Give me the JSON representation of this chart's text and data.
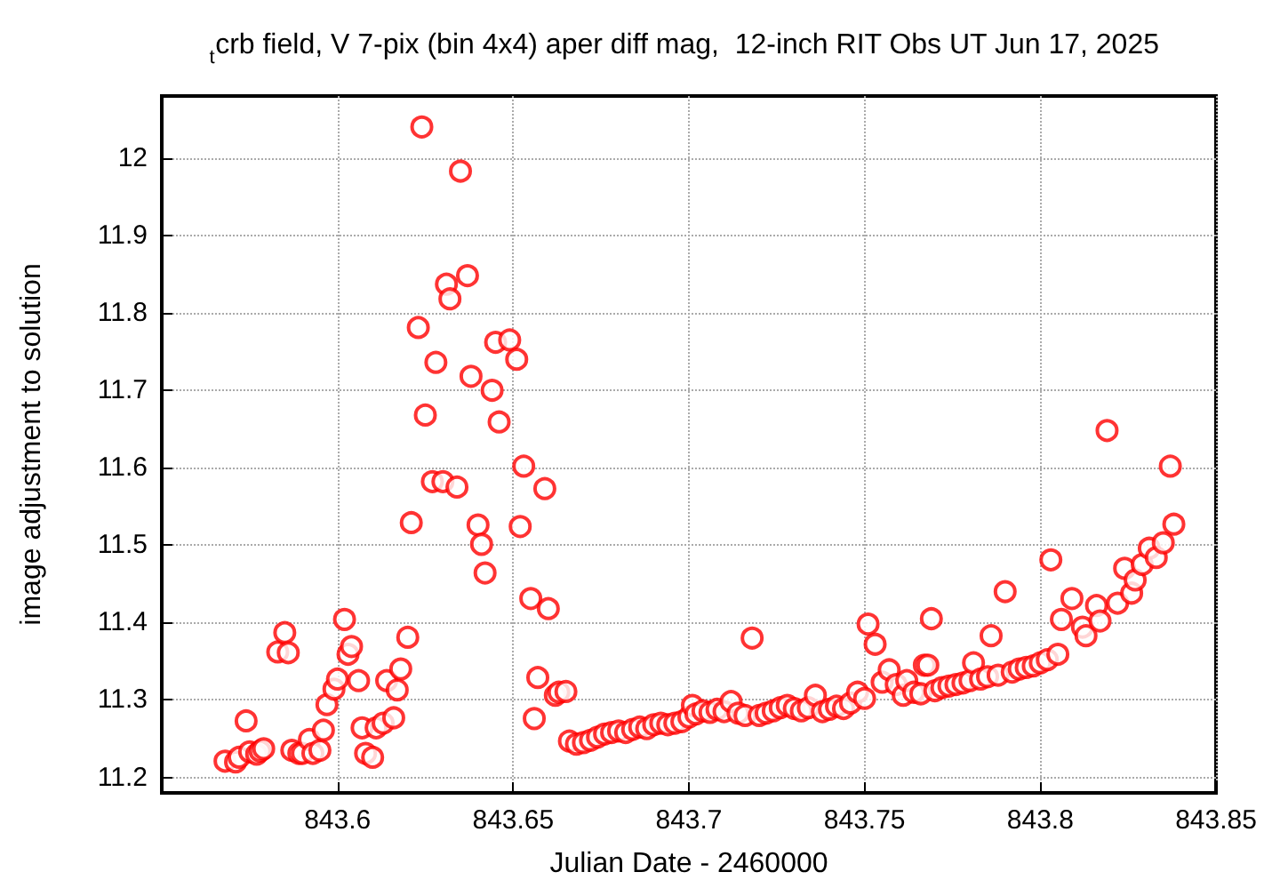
{
  "chart_data": {
    "type": "scatter",
    "title": "$_{t}$crb field, V 7-pix (bin 4x4) aper diff mag,  12-inch RIT Obs UT Jun 17, 2025",
    "xlabel": "Julian Date - 2460000",
    "ylabel": "image adjustment to solution",
    "marker": "circle",
    "grid": true,
    "xlim": [
      843.55,
      843.85
    ],
    "xticks": [
      843.6,
      843.65,
      843.7,
      843.75,
      843.8,
      843.85
    ],
    "ylim": [
      11.18,
      12.08
    ],
    "yticks": [
      11.2,
      11.3,
      11.4,
      11.5,
      11.6,
      11.7,
      11.8,
      11.9,
      12
    ],
    "series": [
      {
        "color": "#ff0000",
        "x": [
          843.568,
          843.571,
          843.572,
          843.574,
          843.575,
          843.577,
          843.578,
          843.579,
          843.583,
          843.585,
          843.586,
          843.587,
          843.589,
          843.59,
          843.592,
          843.593,
          843.595,
          843.596,
          843.597,
          843.599,
          843.6,
          843.602,
          843.603,
          843.604,
          843.606,
          843.607,
          843.608,
          843.61,
          843.611,
          843.613,
          843.614,
          843.616,
          843.617,
          843.618,
          843.62,
          843.621,
          843.623,
          843.624,
          843.625,
          843.627,
          843.628,
          843.63,
          843.631,
          843.632,
          843.634,
          843.635,
          843.637,
          843.638,
          843.64,
          843.641,
          843.642,
          843.644,
          843.645,
          843.646,
          843.649,
          843.651,
          843.652,
          843.653,
          843.655,
          843.656,
          843.657,
          843.659,
          843.66,
          843.662,
          843.663,
          843.665,
          843.666,
          843.668,
          843.67,
          843.672,
          843.674,
          843.676,
          843.678,
          843.68,
          843.682,
          843.684,
          843.686,
          843.688,
          843.69,
          843.692,
          843.694,
          843.696,
          843.698,
          843.7,
          843.701,
          843.702,
          843.704,
          843.706,
          843.708,
          843.71,
          843.712,
          843.714,
          843.716,
          843.718,
          843.72,
          843.722,
          843.724,
          843.726,
          843.728,
          843.73,
          843.732,
          843.734,
          843.736,
          843.738,
          843.74,
          843.742,
          843.744,
          843.746,
          843.748,
          843.75,
          843.751,
          843.753,
          843.755,
          843.757,
          843.759,
          843.761,
          843.762,
          843.764,
          843.766,
          843.767,
          843.768,
          843.769,
          843.77,
          843.772,
          843.774,
          843.776,
          843.778,
          843.78,
          843.781,
          843.783,
          843.785,
          843.786,
          843.788,
          843.79,
          843.792,
          843.794,
          843.796,
          843.798,
          843.8,
          843.802,
          843.803,
          843.805,
          843.806,
          843.809,
          843.812,
          843.813,
          843.816,
          843.817,
          843.819,
          843.822,
          843.824,
          843.826,
          843.827,
          843.829,
          843.831,
          843.833,
          843.835,
          843.837,
          843.838
        ],
        "values": [
          11.221,
          11.22,
          11.226,
          11.273,
          11.233,
          11.23,
          11.234,
          11.237,
          11.362,
          11.387,
          11.361,
          11.235,
          11.231,
          11.231,
          11.249,
          11.231,
          11.235,
          11.261,
          11.294,
          11.314,
          11.327,
          11.404,
          11.359,
          11.369,
          11.325,
          11.264,
          11.231,
          11.226,
          11.264,
          11.27,
          11.325,
          11.277,
          11.313,
          11.34,
          11.381,
          11.529,
          11.781,
          12.04,
          11.668,
          11.582,
          11.736,
          11.582,
          11.837,
          11.818,
          11.575,
          11.983,
          11.848,
          11.718,
          11.526,
          11.501,
          11.464,
          11.7,
          11.762,
          11.659,
          11.765,
          11.74,
          11.524,
          11.602,
          11.431,
          11.276,
          11.329,
          11.573,
          11.418,
          11.306,
          11.31,
          11.311,
          11.247,
          11.243,
          11.245,
          11.248,
          11.252,
          11.256,
          11.258,
          11.26,
          11.258,
          11.262,
          11.265,
          11.263,
          11.268,
          11.27,
          11.268,
          11.27,
          11.272,
          11.278,
          11.293,
          11.282,
          11.286,
          11.284,
          11.288,
          11.285,
          11.298,
          11.283,
          11.28,
          11.38,
          11.28,
          11.283,
          11.286,
          11.29,
          11.293,
          11.289,
          11.286,
          11.29,
          11.306,
          11.285,
          11.288,
          11.292,
          11.289,
          11.296,
          11.31,
          11.302,
          11.398,
          11.372,
          11.323,
          11.339,
          11.32,
          11.306,
          11.325,
          11.31,
          11.308,
          11.345,
          11.345,
          11.405,
          11.312,
          11.316,
          11.318,
          11.32,
          11.322,
          11.325,
          11.348,
          11.327,
          11.33,
          11.383,
          11.332,
          11.44,
          11.336,
          11.34,
          11.342,
          11.344,
          11.348,
          11.352,
          11.481,
          11.359,
          11.404,
          11.431,
          11.394,
          11.383,
          11.422,
          11.402,
          11.648,
          11.425,
          11.47,
          11.438,
          11.455,
          11.475,
          11.496,
          11.484,
          11.503,
          11.602,
          11.527
        ]
      }
    ]
  }
}
